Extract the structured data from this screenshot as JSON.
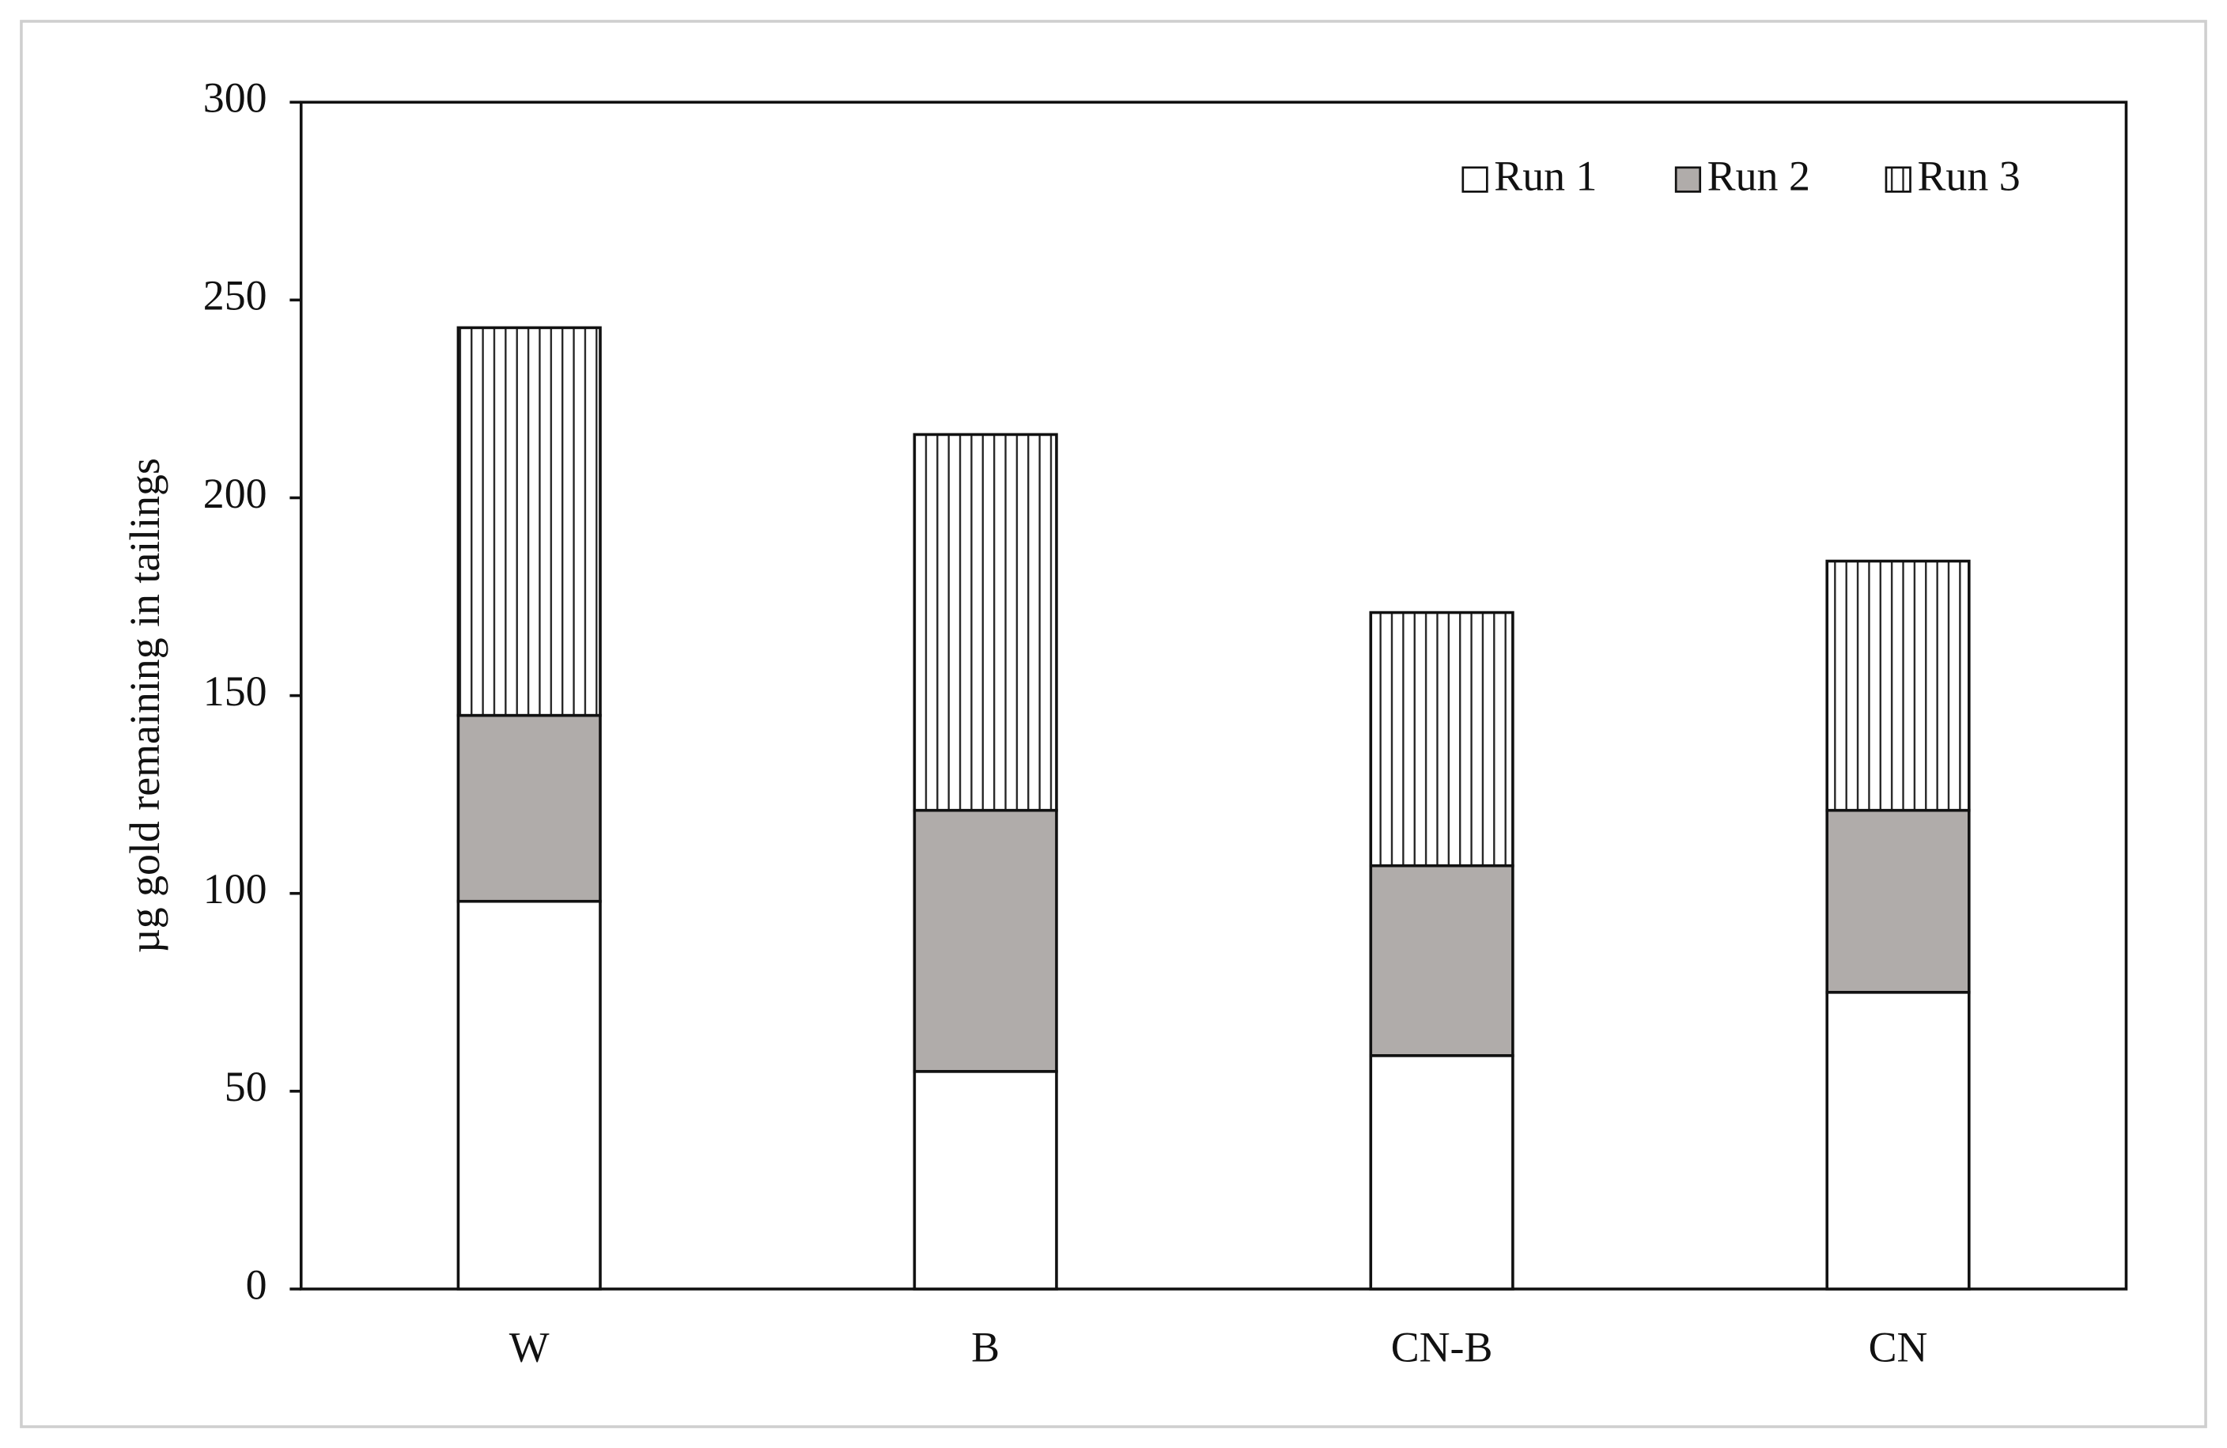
{
  "chart_data": {
    "type": "stacked-bar",
    "y_label": "µg gold remaining in tailings",
    "categories": [
      "W",
      "B",
      "CN-B",
      "CN"
    ],
    "series": [
      {
        "name": "Run 1",
        "color": "#ffffff",
        "values": [
          98,
          55,
          59,
          75
        ]
      },
      {
        "name": "Run 2",
        "color": "#b0acaa",
        "values": [
          47,
          66,
          48,
          46
        ]
      },
      {
        "name": "Run 3",
        "color": "#ffffff",
        "pattern": "vertical-lines",
        "values": [
          98,
          95,
          64,
          63
        ]
      }
    ],
    "ylim": [
      0,
      300
    ],
    "yticks": [
      0,
      50,
      100,
      150,
      200,
      250,
      300
    ],
    "grid": false,
    "legend": "top-right"
  }
}
